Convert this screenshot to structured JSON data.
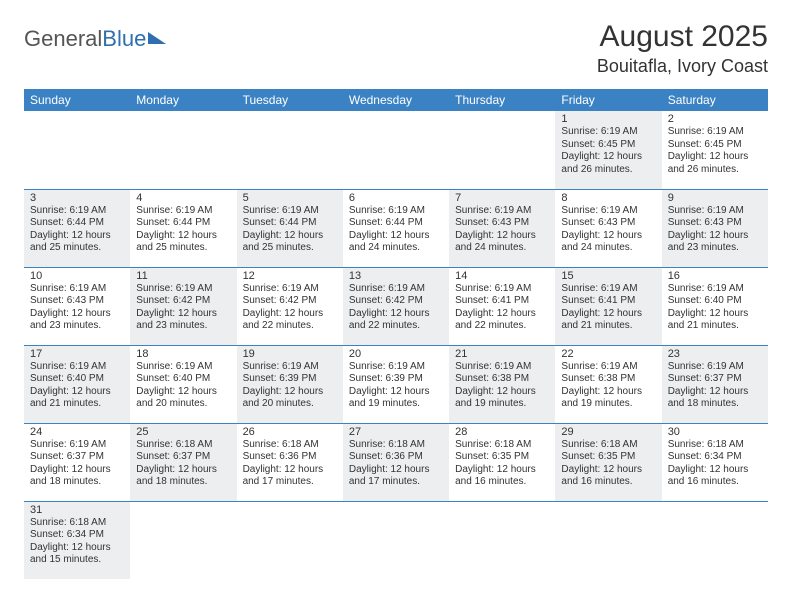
{
  "logo": {
    "general": "General",
    "blue": "Blue"
  },
  "title": "August 2025",
  "location": "Bouitafla, Ivory Coast",
  "colors": {
    "header_bg": "#3b82c4",
    "header_fg": "#ffffff",
    "shaded_bg": "#eceef0",
    "border": "#3b82c4"
  },
  "day_headers": [
    "Sunday",
    "Monday",
    "Tuesday",
    "Wednesday",
    "Thursday",
    "Friday",
    "Saturday"
  ],
  "weeks": [
    [
      null,
      null,
      null,
      null,
      null,
      {
        "n": "1",
        "sr": "Sunrise: 6:19 AM",
        "ss": "Sunset: 6:45 PM",
        "d1": "Daylight: 12 hours",
        "d2": "and 26 minutes.",
        "sh": true
      },
      {
        "n": "2",
        "sr": "Sunrise: 6:19 AM",
        "ss": "Sunset: 6:45 PM",
        "d1": "Daylight: 12 hours",
        "d2": "and 26 minutes.",
        "sh": false
      }
    ],
    [
      {
        "n": "3",
        "sr": "Sunrise: 6:19 AM",
        "ss": "Sunset: 6:44 PM",
        "d1": "Daylight: 12 hours",
        "d2": "and 25 minutes.",
        "sh": true
      },
      {
        "n": "4",
        "sr": "Sunrise: 6:19 AM",
        "ss": "Sunset: 6:44 PM",
        "d1": "Daylight: 12 hours",
        "d2": "and 25 minutes.",
        "sh": false
      },
      {
        "n": "5",
        "sr": "Sunrise: 6:19 AM",
        "ss": "Sunset: 6:44 PM",
        "d1": "Daylight: 12 hours",
        "d2": "and 25 minutes.",
        "sh": true
      },
      {
        "n": "6",
        "sr": "Sunrise: 6:19 AM",
        "ss": "Sunset: 6:44 PM",
        "d1": "Daylight: 12 hours",
        "d2": "and 24 minutes.",
        "sh": false
      },
      {
        "n": "7",
        "sr": "Sunrise: 6:19 AM",
        "ss": "Sunset: 6:43 PM",
        "d1": "Daylight: 12 hours",
        "d2": "and 24 minutes.",
        "sh": true
      },
      {
        "n": "8",
        "sr": "Sunrise: 6:19 AM",
        "ss": "Sunset: 6:43 PM",
        "d1": "Daylight: 12 hours",
        "d2": "and 24 minutes.",
        "sh": false
      },
      {
        "n": "9",
        "sr": "Sunrise: 6:19 AM",
        "ss": "Sunset: 6:43 PM",
        "d1": "Daylight: 12 hours",
        "d2": "and 23 minutes.",
        "sh": true
      }
    ],
    [
      {
        "n": "10",
        "sr": "Sunrise: 6:19 AM",
        "ss": "Sunset: 6:43 PM",
        "d1": "Daylight: 12 hours",
        "d2": "and 23 minutes.",
        "sh": false
      },
      {
        "n": "11",
        "sr": "Sunrise: 6:19 AM",
        "ss": "Sunset: 6:42 PM",
        "d1": "Daylight: 12 hours",
        "d2": "and 23 minutes.",
        "sh": true
      },
      {
        "n": "12",
        "sr": "Sunrise: 6:19 AM",
        "ss": "Sunset: 6:42 PM",
        "d1": "Daylight: 12 hours",
        "d2": "and 22 minutes.",
        "sh": false
      },
      {
        "n": "13",
        "sr": "Sunrise: 6:19 AM",
        "ss": "Sunset: 6:42 PM",
        "d1": "Daylight: 12 hours",
        "d2": "and 22 minutes.",
        "sh": true
      },
      {
        "n": "14",
        "sr": "Sunrise: 6:19 AM",
        "ss": "Sunset: 6:41 PM",
        "d1": "Daylight: 12 hours",
        "d2": "and 22 minutes.",
        "sh": false
      },
      {
        "n": "15",
        "sr": "Sunrise: 6:19 AM",
        "ss": "Sunset: 6:41 PM",
        "d1": "Daylight: 12 hours",
        "d2": "and 21 minutes.",
        "sh": true
      },
      {
        "n": "16",
        "sr": "Sunrise: 6:19 AM",
        "ss": "Sunset: 6:40 PM",
        "d1": "Daylight: 12 hours",
        "d2": "and 21 minutes.",
        "sh": false
      }
    ],
    [
      {
        "n": "17",
        "sr": "Sunrise: 6:19 AM",
        "ss": "Sunset: 6:40 PM",
        "d1": "Daylight: 12 hours",
        "d2": "and 21 minutes.",
        "sh": true
      },
      {
        "n": "18",
        "sr": "Sunrise: 6:19 AM",
        "ss": "Sunset: 6:40 PM",
        "d1": "Daylight: 12 hours",
        "d2": "and 20 minutes.",
        "sh": false
      },
      {
        "n": "19",
        "sr": "Sunrise: 6:19 AM",
        "ss": "Sunset: 6:39 PM",
        "d1": "Daylight: 12 hours",
        "d2": "and 20 minutes.",
        "sh": true
      },
      {
        "n": "20",
        "sr": "Sunrise: 6:19 AM",
        "ss": "Sunset: 6:39 PM",
        "d1": "Daylight: 12 hours",
        "d2": "and 19 minutes.",
        "sh": false
      },
      {
        "n": "21",
        "sr": "Sunrise: 6:19 AM",
        "ss": "Sunset: 6:38 PM",
        "d1": "Daylight: 12 hours",
        "d2": "and 19 minutes.",
        "sh": true
      },
      {
        "n": "22",
        "sr": "Sunrise: 6:19 AM",
        "ss": "Sunset: 6:38 PM",
        "d1": "Daylight: 12 hours",
        "d2": "and 19 minutes.",
        "sh": false
      },
      {
        "n": "23",
        "sr": "Sunrise: 6:19 AM",
        "ss": "Sunset: 6:37 PM",
        "d1": "Daylight: 12 hours",
        "d2": "and 18 minutes.",
        "sh": true
      }
    ],
    [
      {
        "n": "24",
        "sr": "Sunrise: 6:19 AM",
        "ss": "Sunset: 6:37 PM",
        "d1": "Daylight: 12 hours",
        "d2": "and 18 minutes.",
        "sh": false
      },
      {
        "n": "25",
        "sr": "Sunrise: 6:18 AM",
        "ss": "Sunset: 6:37 PM",
        "d1": "Daylight: 12 hours",
        "d2": "and 18 minutes.",
        "sh": true
      },
      {
        "n": "26",
        "sr": "Sunrise: 6:18 AM",
        "ss": "Sunset: 6:36 PM",
        "d1": "Daylight: 12 hours",
        "d2": "and 17 minutes.",
        "sh": false
      },
      {
        "n": "27",
        "sr": "Sunrise: 6:18 AM",
        "ss": "Sunset: 6:36 PM",
        "d1": "Daylight: 12 hours",
        "d2": "and 17 minutes.",
        "sh": true
      },
      {
        "n": "28",
        "sr": "Sunrise: 6:18 AM",
        "ss": "Sunset: 6:35 PM",
        "d1": "Daylight: 12 hours",
        "d2": "and 16 minutes.",
        "sh": false
      },
      {
        "n": "29",
        "sr": "Sunrise: 6:18 AM",
        "ss": "Sunset: 6:35 PM",
        "d1": "Daylight: 12 hours",
        "d2": "and 16 minutes.",
        "sh": true
      },
      {
        "n": "30",
        "sr": "Sunrise: 6:18 AM",
        "ss": "Sunset: 6:34 PM",
        "d1": "Daylight: 12 hours",
        "d2": "and 16 minutes.",
        "sh": false
      }
    ],
    [
      {
        "n": "31",
        "sr": "Sunrise: 6:18 AM",
        "ss": "Sunset: 6:34 PM",
        "d1": "Daylight: 12 hours",
        "d2": "and 15 minutes.",
        "sh": true
      },
      null,
      null,
      null,
      null,
      null,
      null
    ]
  ]
}
